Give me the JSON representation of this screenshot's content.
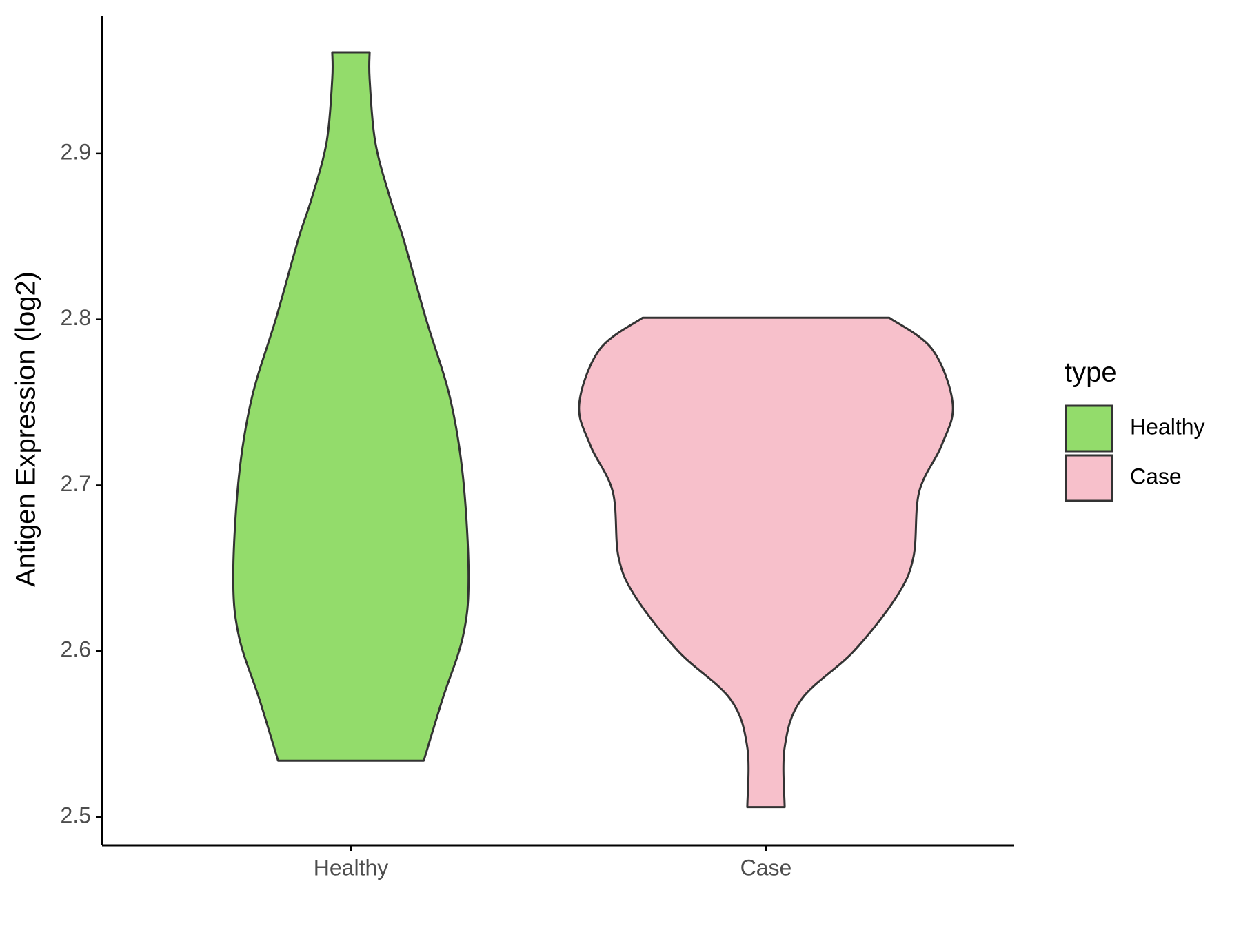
{
  "chart_data": {
    "type": "violin",
    "y_label": "Antigen Expression (log2)",
    "categories": [
      "Healthy",
      "Case"
    ],
    "legend_title": "type",
    "legend_position": "right",
    "ylim": [
      2.483,
      2.983
    ],
    "yticks": [
      2.5,
      2.6,
      2.7,
      2.8,
      2.9
    ],
    "series": [
      {
        "name": "Healthy",
        "color": "#93dc6b",
        "y": [
          2.961,
          2.945,
          2.907,
          2.873,
          2.849,
          2.801,
          2.753,
          2.705,
          2.645,
          2.609,
          2.571,
          2.534
        ],
        "widths": [
          0.1,
          0.1,
          0.13,
          0.21,
          0.28,
          0.4,
          0.53,
          0.6,
          0.63,
          0.6,
          0.49,
          0.39
        ]
      },
      {
        "name": "Case",
        "color": "#f7c0cb",
        "y": [
          2.801,
          2.782,
          2.749,
          2.724,
          2.696,
          2.657,
          2.633,
          2.6,
          2.571,
          2.542,
          2.506
        ],
        "widths": [
          0.66,
          0.89,
          1.0,
          0.94,
          0.82,
          0.79,
          0.7,
          0.47,
          0.19,
          0.1,
          0.1
        ]
      }
    ]
  }
}
